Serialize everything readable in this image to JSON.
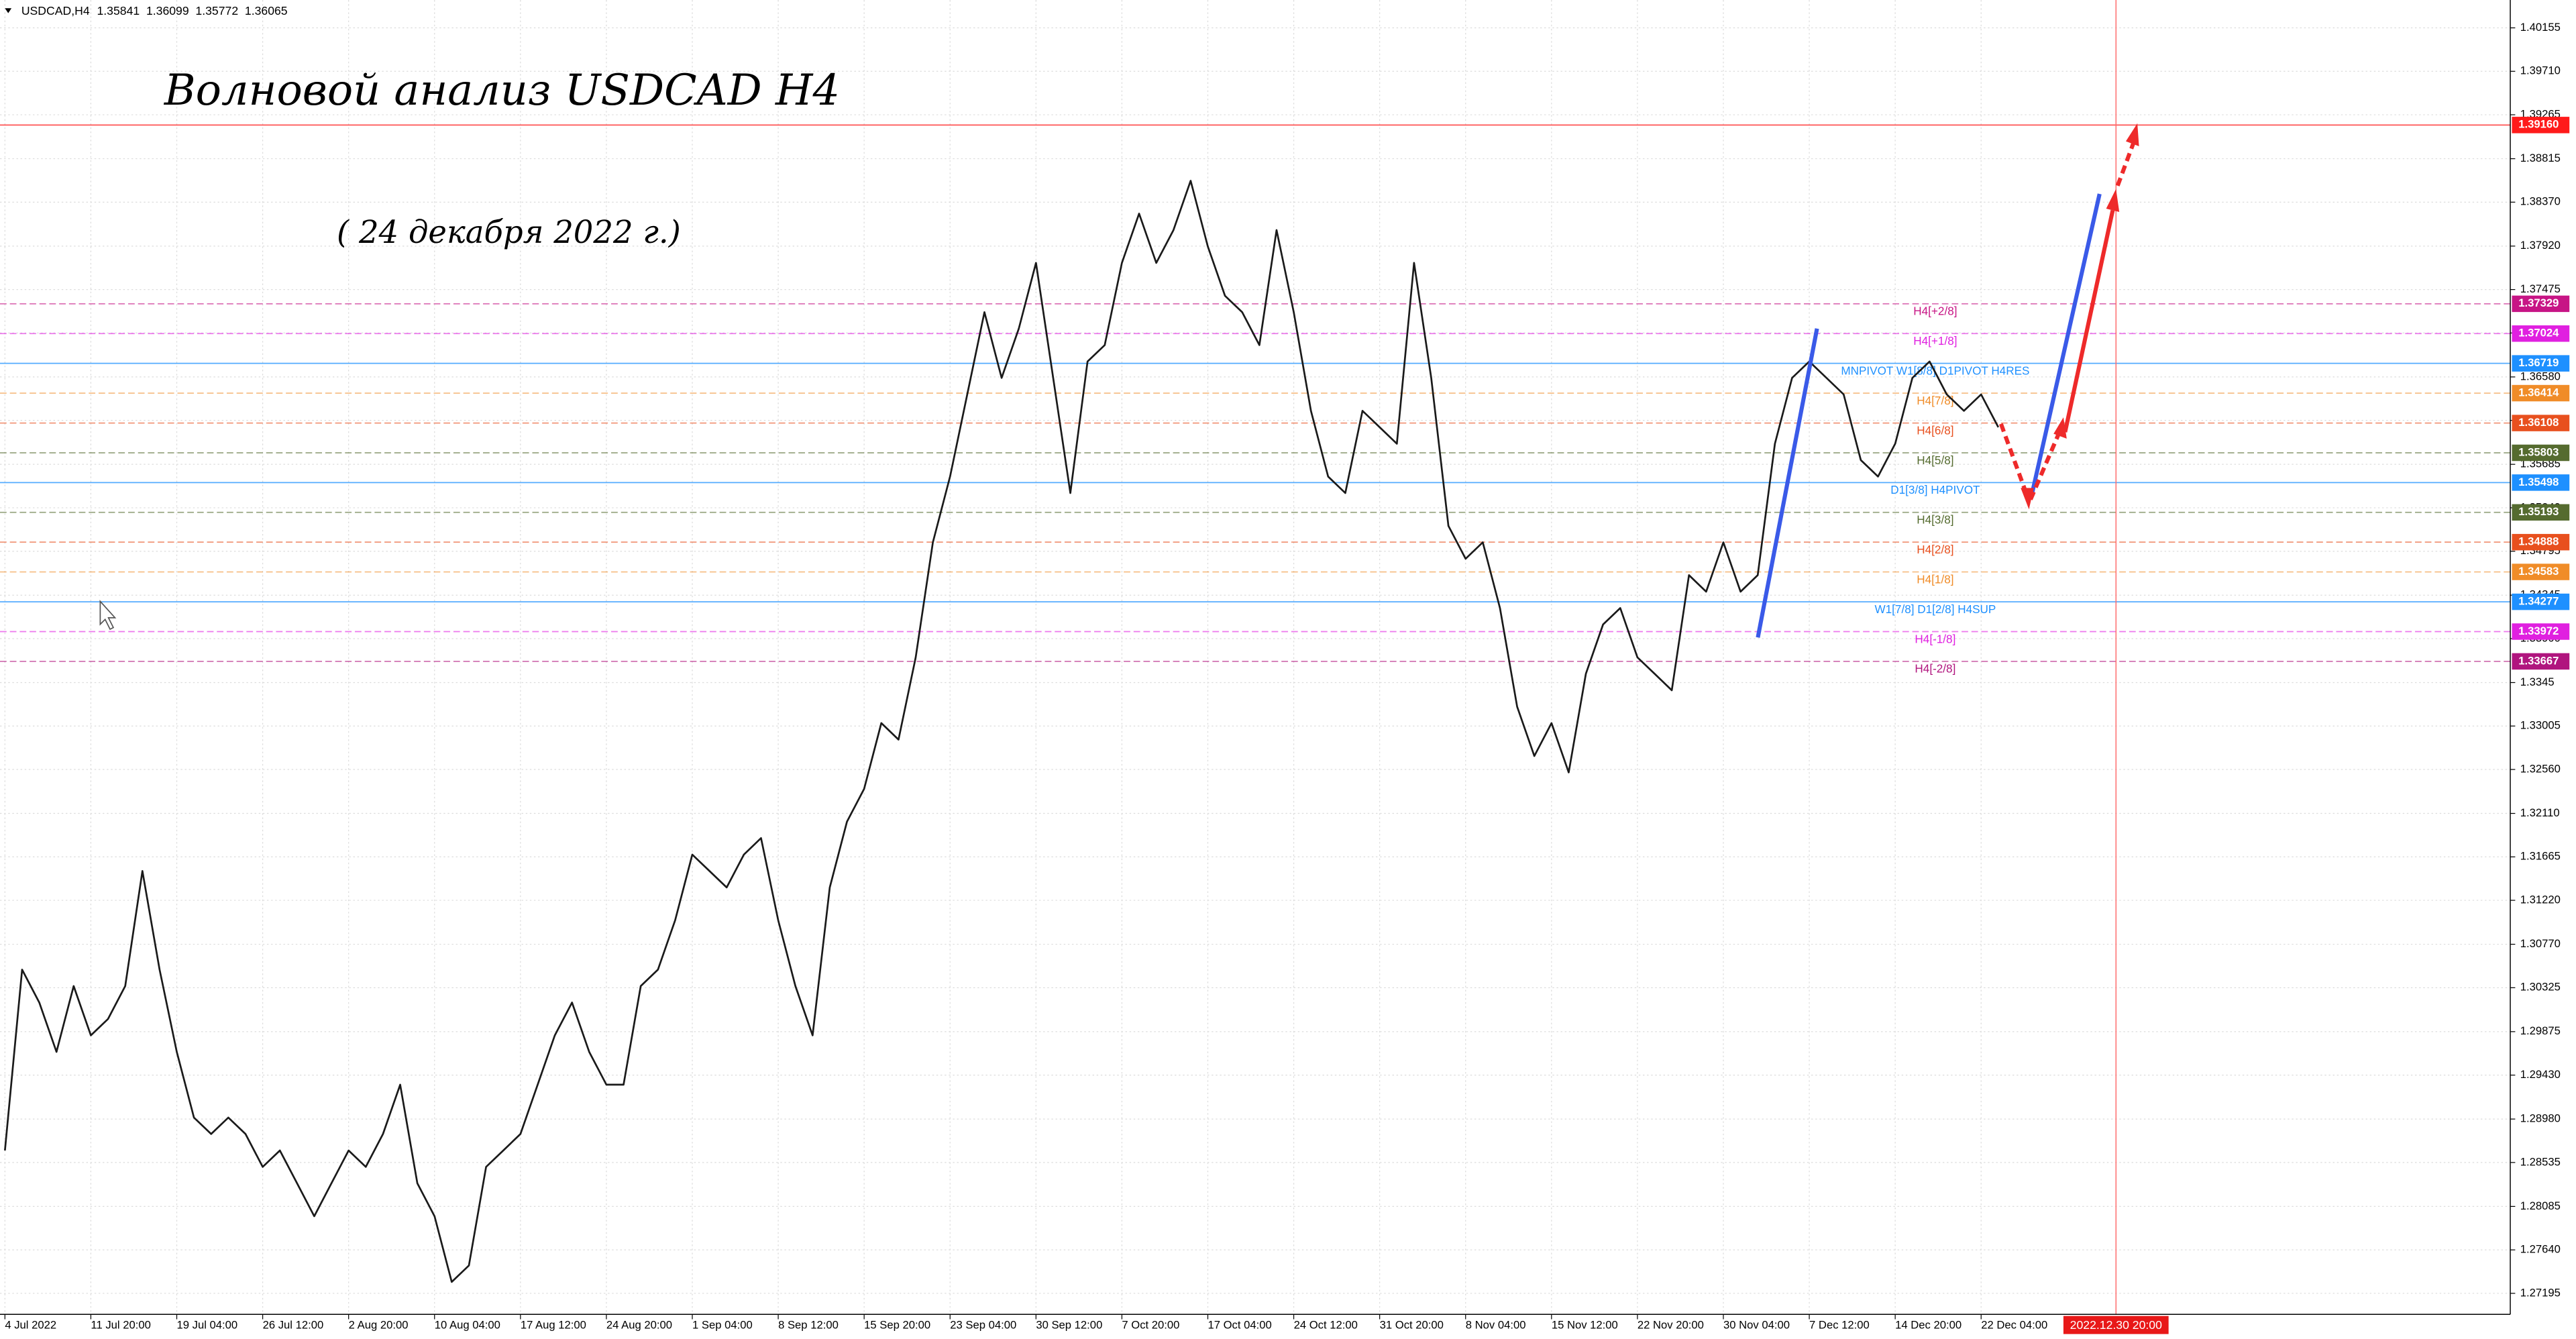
{
  "chart_data": {
    "type": "line",
    "symbol": "USDCAD,H4",
    "ohlc": [
      1.35841,
      1.36099,
      1.35772,
      1.36065
    ],
    "title": "Волновой анализ USDCAD H4",
    "subtitle": "( 24 декабря 2022 г.)",
    "categories": [
      "4 Jul 2022",
      null,
      null,
      null,
      null,
      "11 Jul 20:00",
      null,
      null,
      null,
      null,
      "19 Jul 04:00",
      null,
      null,
      null,
      null,
      "26 Jul 12:00",
      null,
      null,
      null,
      null,
      "2 Aug 20:00",
      null,
      null,
      null,
      null,
      "10 Aug 04:00",
      null,
      null,
      null,
      null,
      "17 Aug 12:00",
      null,
      null,
      null,
      null,
      "24 Aug 20:00",
      null,
      null,
      null,
      null,
      "1 Sep 04:00",
      null,
      null,
      null,
      null,
      "8 Sep 12:00",
      null,
      null,
      null,
      null,
      "15 Sep 20:00",
      null,
      null,
      null,
      null,
      "23 Sep 04:00",
      null,
      null,
      null,
      null,
      "30 Sep 12:00",
      null,
      null,
      null,
      null,
      "7 Oct 20:00",
      null,
      null,
      null,
      null,
      "17 Oct 04:00",
      null,
      null,
      null,
      null,
      "24 Oct 12:00",
      null,
      null,
      null,
      null,
      "31 Oct 20:00",
      null,
      null,
      null,
      null,
      "8 Nov 04:00",
      null,
      null,
      null,
      null,
      "15 Nov 12:00",
      null,
      null,
      null,
      null,
      "22 Nov 20:00",
      null,
      null,
      null,
      null,
      "30 Nov 04:00",
      null,
      null,
      null,
      null,
      "7 Dec 12:00",
      null,
      null,
      null,
      null,
      "14 Dec 20:00",
      null,
      null,
      null,
      null,
      "22 Dec 04:00",
      null
    ],
    "color": "#1a1a1a",
    "values": [
      1.28658,
      1.3051,
      1.30173,
      1.29668,
      1.30342,
      1.29837,
      1.30005,
      1.30342,
      1.3152,
      1.3051,
      1.29668,
      1.28995,
      1.28827,
      1.28995,
      1.28827,
      1.2849,
      1.28658,
      1.28322,
      1.27985,
      1.28322,
      1.28658,
      1.2849,
      1.28827,
      1.29332,
      1.28322,
      1.27985,
      1.27312,
      1.2748,
      1.2849,
      1.28658,
      1.28827,
      1.29332,
      1.29837,
      1.30173,
      1.29668,
      1.29332,
      1.29332,
      1.30342,
      1.3051,
      1.31015,
      1.31688,
      1.3152,
      1.31352,
      1.31688,
      1.31857,
      1.31015,
      1.30342,
      1.29837,
      1.31352,
      1.32025,
      1.32362,
      1.33035,
      1.32866,
      1.33708,
      1.34886,
      1.3556,
      1.36401,
      1.37243,
      1.3657,
      1.37075,
      1.37748,
      1.3657,
      1.35391,
      1.36738,
      1.36906,
      1.37748,
      1.38253,
      1.37748,
      1.38084,
      1.38589,
      1.37916,
      1.37411,
      1.37243,
      1.36906,
      1.38084,
      1.37243,
      1.36233,
      1.3556,
      1.35391,
      1.36233,
      1.36065,
      1.35896,
      1.37748,
      1.3657,
      1.35055,
      1.34718,
      1.34886,
      1.34213,
      1.33203,
      1.32698,
      1.33035,
      1.3253,
      1.3354,
      1.34045,
      1.34213,
      1.33708,
      1.3354,
      1.33371,
      1.3455,
      1.34381,
      1.34886,
      1.34381,
      1.3455,
      1.35896,
      1.3657,
      1.36738,
      1.3657,
      1.36401,
      1.35728,
      1.3556,
      1.35896,
      1.3657,
      1.36738,
      1.36401,
      1.36233,
      1.36401,
      1.36065
    ],
    "ylim": [
      1.2698,
      1.4044
    ],
    "yticks": [
      1.40155,
      {
        "value": 1.3971,
        "label": "1.39710"
      },
      1.39265,
      1.38815,
      {
        "value": 1.3837,
        "label": "1.38370"
      },
      {
        "value": 1.3792,
        "label": "1.37920"
      },
      1.37475,
      {
        "value": 1.3703,
        "label": "1.37030"
      },
      {
        "value": 1.3658,
        "label": "1.36580"
      },
      1.36135,
      1.35685,
      {
        "value": 1.3524,
        "label": "1.35240"
      },
      1.34795,
      1.34345,
      {
        "value": 1.339,
        "label": "1.33900"
      },
      1.3345,
      1.33005,
      {
        "value": 1.3256,
        "label": "1.32560"
      },
      {
        "value": 1.3211,
        "label": "1.32110"
      },
      1.31665,
      {
        "value": 1.3122,
        "label": "1.31220"
      },
      {
        "value": 1.3077,
        "label": "1.30770"
      },
      1.30325,
      1.29875,
      {
        "value": 1.2943,
        "label": "1.29430"
      },
      {
        "value": 1.2898,
        "label": "1.28980"
      },
      1.28535,
      1.28085,
      {
        "value": 1.2764,
        "label": "1.27640"
      },
      1.27195
    ],
    "grid": true,
    "levels": [
      {
        "price": {
          "value": 1.3916,
          "label": "1.39160"
        },
        "color": "#ff1a1a",
        "dashed": false
      },
      {
        "label": "H4[+2/8]",
        "price": 1.37329,
        "color": "#c71585",
        "dashed": true
      },
      {
        "label": "H4[+1/8]",
        "price": 1.37024,
        "color": "#e020e0",
        "dashed": true
      },
      {
        "label": "MNPIVOT W1[8/8] D1PIVOT H4RES",
        "price": 1.36719,
        "color": "#1e90ff",
        "dashed": false
      },
      {
        "label": "H4[7/8]",
        "price": 1.36414,
        "color": "#f08c28",
        "dashed": true
      },
      {
        "label": "H4[6/8]",
        "price": 1.36108,
        "color": "#e8501e",
        "dashed": true
      },
      {
        "label": "H4[5/8]",
        "price": 1.35803,
        "color": "#556b2f",
        "dashed": true
      },
      {
        "label": "D1[3/8] H4PIVOT",
        "price": 1.35498,
        "color": "#1e90ff",
        "dashed": false
      },
      {
        "label": "H4[3/8]",
        "price": 1.35193,
        "color": "#556b2f",
        "dashed": true
      },
      {
        "label": "H4[2/8]",
        "price": 1.34888,
        "color": "#e8501e",
        "dashed": true
      },
      {
        "label": "H4[1/8]",
        "price": 1.34583,
        "color": "#f08c28",
        "dashed": true
      },
      {
        "label": "W1[7/8] D1[2/8] H4SUP",
        "price": 1.34277,
        "color": "#1e90ff",
        "dashed": false
      },
      {
        "label": "H4[-1/8]",
        "price": 1.33972,
        "color": "#e020e0",
        "dashed": true
      },
      {
        "label": "H4[-2/8]",
        "price": 1.33667,
        "color": "#b0157e",
        "dashed": true
      }
    ],
    "cursor_time": "2022.12.30 20:00"
  }
}
